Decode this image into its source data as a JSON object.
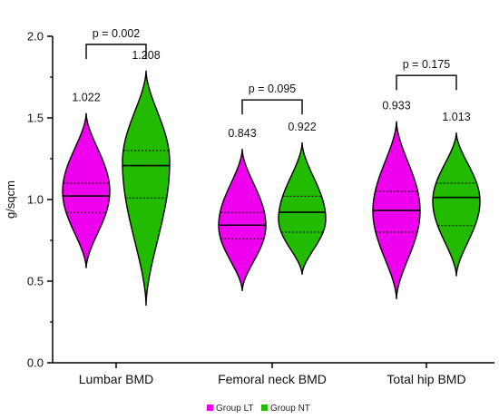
{
  "chart_data": {
    "type": "violin",
    "ylabel": "g/sqcm",
    "ylim": [
      0.0,
      2.0
    ],
    "yticks": [
      "0.0",
      "0.5",
      "1.0",
      "1.5",
      "2.0"
    ],
    "categories": [
      "Lumbar BMD",
      "Femoral neck BMD",
      "Total hip BMD"
    ],
    "series": [
      {
        "name": "Group LT",
        "color": "#ee00ee",
        "violins": [
          {
            "min": 0.58,
            "max": 1.53,
            "q1": 0.92,
            "median": 1.022,
            "q3": 1.1,
            "mode": 1.05,
            "label": "1.022"
          },
          {
            "min": 0.44,
            "max": 1.31,
            "q1": 0.76,
            "median": 0.843,
            "q3": 0.92,
            "mode": 0.84,
            "label": "0.843"
          },
          {
            "min": 0.39,
            "max": 1.48,
            "q1": 0.8,
            "median": 0.933,
            "q3": 1.05,
            "mode": 0.93,
            "label": "0.933"
          }
        ]
      },
      {
        "name": "Group NT",
        "color": "#22bb00",
        "violins": [
          {
            "min": 0.35,
            "max": 1.79,
            "q1": 1.01,
            "median": 1.208,
            "q3": 1.3,
            "mode": 1.23,
            "label": "1.208"
          },
          {
            "min": 0.54,
            "max": 1.35,
            "q1": 0.8,
            "median": 0.922,
            "q3": 1.02,
            "mode": 0.88,
            "label": "0.922"
          },
          {
            "min": 0.53,
            "max": 1.41,
            "q1": 0.84,
            "median": 1.013,
            "q3": 1.1,
            "mode": 0.99,
            "label": "1.013"
          }
        ]
      }
    ],
    "comparisons": [
      {
        "category": 0,
        "p_label": "p = 0.002",
        "y": 1.95
      },
      {
        "category": 1,
        "p_label": "p = 0.095",
        "y": 1.61
      },
      {
        "category": 2,
        "p_label": "p = 0.175",
        "y": 1.76
      }
    ],
    "legend_position": "bottom-center"
  }
}
